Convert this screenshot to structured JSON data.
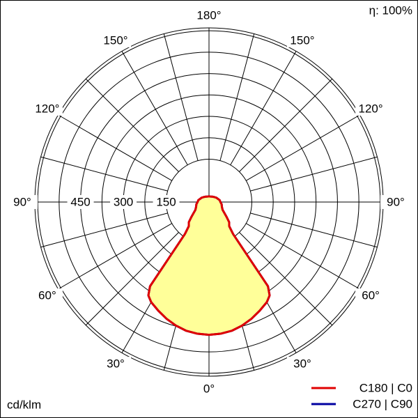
{
  "chart_data": {
    "type": "polar",
    "efficiency": "η: 100%",
    "unit": "cd/klm",
    "rlim": [
      0,
      610
    ],
    "rticks": [
      150,
      300,
      450
    ],
    "rgrid": [
      150,
      225,
      300,
      375,
      450,
      525,
      600
    ],
    "angle_labels": [
      {
        "value": 0,
        "label": "0°"
      },
      {
        "value": 30,
        "label": "30°"
      },
      {
        "value": 60,
        "label": "60°"
      },
      {
        "value": 90,
        "label": "90°"
      },
      {
        "value": 120,
        "label": "120°"
      },
      {
        "value": 150,
        "label": "150°"
      },
      {
        "value": 180,
        "label": "180°"
      }
    ],
    "angles": [
      0,
      5,
      10,
      15,
      20,
      25,
      30,
      33,
      35,
      36,
      37,
      40,
      45,
      50,
      55,
      60,
      70,
      80,
      90,
      100,
      110,
      120,
      135,
      150,
      165,
      180
    ],
    "series": [
      {
        "name": "C270 | C90",
        "color": "#0000a0",
        "values": [
          465,
          463,
          458,
          448,
          435,
          420,
          405,
          390,
          360,
          200,
          140,
          110,
          100,
          80,
          65,
          55,
          48,
          45,
          40,
          38,
          33,
          30,
          25,
          22,
          20,
          20
        ]
      },
      {
        "name": "C180 | C0",
        "color": "#e00000",
        "values": [
          465,
          463,
          458,
          448,
          435,
          420,
          405,
          390,
          360,
          200,
          140,
          110,
          100,
          80,
          65,
          55,
          48,
          45,
          40,
          38,
          33,
          30,
          25,
          22,
          20,
          20
        ]
      }
    ]
  }
}
